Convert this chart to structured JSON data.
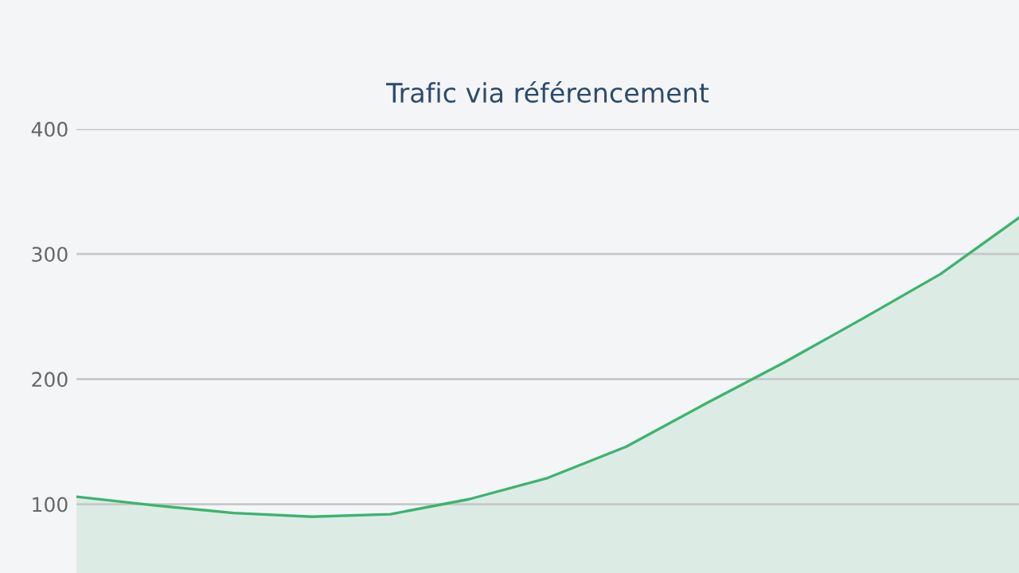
{
  "chart_data": {
    "type": "area",
    "title": "Trafic via référencement",
    "categories": [
      null,
      null,
      null,
      null,
      null,
      null,
      null,
      null,
      null,
      null,
      null,
      null,
      null
    ],
    "values": [
      106,
      99,
      93,
      90,
      92,
      104,
      121,
      146,
      180,
      213,
      248,
      284,
      329
    ],
    "color": "#3cb46e",
    "ylim": [
      45,
      400
    ],
    "yticks": [
      100,
      200,
      300,
      400
    ],
    "grid": "y",
    "tick_labels": "y"
  }
}
